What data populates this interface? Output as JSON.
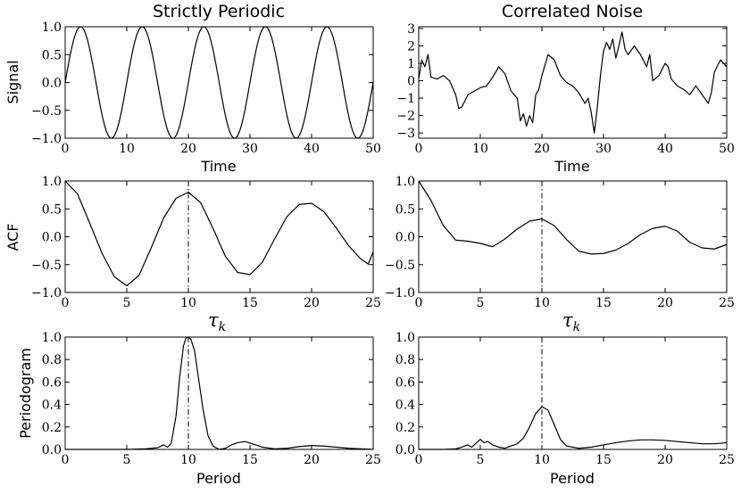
{
  "figure": {
    "background": "#ffffff",
    "line_color": "#000000"
  },
  "chart_data": [
    {
      "id": "signal-periodic",
      "type": "line",
      "title": "Strictly Periodic",
      "xlabel": "Time",
      "ylabel": "Signal",
      "xlim": [
        0,
        50
      ],
      "ylim": [
        -1.0,
        1.0
      ],
      "xticks": [
        0,
        10,
        20,
        30,
        40,
        50
      ],
      "xtick_labels": [
        "0",
        "10",
        "20",
        "30",
        "40",
        "50"
      ],
      "yticks": [
        1.0,
        0.5,
        0.0,
        -0.5,
        -1.0
      ],
      "ytick_labels": [
        "1.0",
        "0.5",
        "0.0",
        "−0.5",
        "−1.0"
      ],
      "series": [
        {
          "name": "signal",
          "kind": "sine",
          "period": 10,
          "amplitude": 1.0
        }
      ]
    },
    {
      "id": "signal-noise",
      "type": "line",
      "title": "Correlated Noise",
      "xlabel": "Time",
      "ylabel": "",
      "xlim": [
        0,
        50
      ],
      "ylim": [
        -3.3,
        3.1
      ],
      "xticks": [
        0,
        10,
        20,
        30,
        40,
        50
      ],
      "xtick_labels": [
        "0",
        "10",
        "20",
        "30",
        "40",
        "50"
      ],
      "yticks": [
        3,
        2,
        1,
        0,
        -1,
        -2,
        -3
      ],
      "ytick_labels": [
        "3",
        "2",
        "1",
        "0",
        "−1",
        "−2",
        "−3"
      ],
      "series": [
        {
          "name": "signal",
          "x": [
            0,
            0.5,
            1,
            1.5,
            2,
            3,
            4,
            5,
            6,
            6.5,
            7,
            8,
            9,
            10,
            11,
            12,
            13,
            14,
            15,
            16,
            16.5,
            17,
            17.5,
            18,
            18.5,
            19,
            19.5,
            20,
            21,
            22,
            23,
            24,
            25,
            26,
            27,
            27.5,
            28,
            28.5,
            29,
            29.5,
            30,
            30.5,
            31,
            31.5,
            32,
            32.5,
            33,
            33.5,
            34,
            35,
            36,
            37,
            37.5,
            38,
            39,
            40,
            40.5,
            41,
            42,
            43,
            44,
            45,
            46,
            47,
            47.5,
            48,
            49,
            50
          ],
          "values": [
            0.1,
            1.2,
            0.8,
            1.5,
            0.2,
            0.1,
            0.3,
            0.0,
            -0.8,
            -1.6,
            -1.5,
            -0.8,
            -0.6,
            -0.4,
            -0.3,
            0.2,
            0.8,
            0.4,
            -0.6,
            -1.0,
            -2.3,
            -1.9,
            -2.6,
            -2.0,
            -2.4,
            -0.8,
            -0.5,
            0.3,
            1.5,
            1.2,
            0.3,
            -0.1,
            -0.3,
            -0.7,
            -1.3,
            -1.0,
            -1.8,
            -3.0,
            -1.5,
            0.3,
            1.7,
            2.2,
            1.8,
            2.4,
            1.3,
            2.0,
            2.8,
            1.8,
            1.5,
            2.0,
            1.5,
            0.8,
            1.5,
            0.0,
            0.3,
            1.0,
            0.8,
            0.1,
            -0.3,
            -0.5,
            -0.8,
            -0.3,
            -0.8,
            -1.3,
            -0.7,
            0.5,
            1.2,
            0.8
          ]
        }
      ]
    },
    {
      "id": "acf-periodic",
      "type": "line",
      "title": "",
      "xlabel": "τ",
      "xlabel_sub": "k",
      "ylabel": "ACF",
      "xlim": [
        0,
        25
      ],
      "ylim": [
        -1.0,
        1.0
      ],
      "xticks": [
        0,
        5,
        10,
        15,
        20,
        25
      ],
      "xtick_labels": [
        "0",
        "5",
        "10",
        "15",
        "20",
        "25"
      ],
      "yticks": [
        1.0,
        0.5,
        0.0,
        -0.5,
        -1.0
      ],
      "ytick_labels": [
        "1.0",
        "0.5",
        "0.0",
        "−0.5",
        "−1.0"
      ],
      "marker_x": 10,
      "series": [
        {
          "name": "acf",
          "x": [
            0,
            1,
            2,
            3,
            4,
            5,
            6,
            7,
            8,
            9,
            10,
            11,
            12,
            13,
            14,
            15,
            16,
            17,
            18,
            19,
            20,
            21,
            22,
            23,
            24,
            24.6,
            25
          ],
          "values": [
            1.0,
            0.77,
            0.24,
            -0.3,
            -0.72,
            -0.88,
            -0.69,
            -0.19,
            0.34,
            0.69,
            0.8,
            0.61,
            0.15,
            -0.35,
            -0.64,
            -0.68,
            -0.46,
            -0.04,
            0.36,
            0.58,
            0.6,
            0.45,
            0.16,
            -0.16,
            -0.4,
            -0.49,
            -0.27
          ]
        }
      ]
    },
    {
      "id": "acf-noise",
      "type": "line",
      "title": "",
      "xlabel": "τ",
      "xlabel_sub": "k",
      "ylabel": "",
      "xlim": [
        0,
        25
      ],
      "ylim": [
        -1.0,
        1.0
      ],
      "xticks": [
        0,
        5,
        10,
        15,
        20,
        25
      ],
      "xtick_labels": [
        "0",
        "5",
        "10",
        "15",
        "20",
        "25"
      ],
      "yticks": [
        1.0,
        0.5,
        0.0,
        -0.5,
        -1.0
      ],
      "ytick_labels": [
        "1.0",
        "0.5",
        "0.0",
        "−0.5",
        "−1.0"
      ],
      "marker_x": 10,
      "series": [
        {
          "name": "acf",
          "x": [
            0,
            1,
            2,
            3,
            4,
            5,
            6,
            7,
            8,
            9,
            10,
            11,
            12,
            13,
            14,
            15,
            16,
            17,
            18,
            19,
            20,
            21,
            22,
            23,
            24,
            25
          ],
          "values": [
            1.0,
            0.65,
            0.2,
            -0.06,
            -0.08,
            -0.12,
            -0.18,
            -0.04,
            0.14,
            0.28,
            0.32,
            0.2,
            -0.05,
            -0.26,
            -0.31,
            -0.3,
            -0.24,
            -0.12,
            0.04,
            0.15,
            0.19,
            0.1,
            -0.1,
            -0.2,
            -0.22,
            -0.14
          ]
        }
      ]
    },
    {
      "id": "periodogram-periodic",
      "type": "line",
      "title": "",
      "xlabel": "Period",
      "ylabel": "Periodogram",
      "xlim": [
        0,
        25
      ],
      "ylim": [
        0.0,
        1.0
      ],
      "xticks": [
        0,
        5,
        10,
        15,
        20,
        25
      ],
      "xtick_labels": [
        "0",
        "5",
        "10",
        "15",
        "20",
        "25"
      ],
      "yticks": [
        1.0,
        0.8,
        0.6,
        0.4,
        0.2,
        0.0
      ],
      "ytick_labels": [
        "1.0",
        "0.8",
        "0.6",
        "0.4",
        "0.2",
        "0.0"
      ],
      "marker_x": 10,
      "series": [
        {
          "name": "periodogram",
          "x": [
            0,
            5,
            6.5,
            7.5,
            8.0,
            8.3,
            8.6,
            9.0,
            9.3,
            9.6,
            9.8,
            10.0,
            10.2,
            10.5,
            10.8,
            11.2,
            11.6,
            12.0,
            12.5,
            13.0,
            13.5,
            14.0,
            14.6,
            15.2,
            16.0,
            17.0,
            18.0,
            19.0,
            20.0,
            21.0,
            22.0,
            23.0,
            24.0,
            25.0
          ],
          "values": [
            0.0,
            0.0,
            0.005,
            0.015,
            0.04,
            0.02,
            0.05,
            0.3,
            0.65,
            0.92,
            0.99,
            1.0,
            0.98,
            0.88,
            0.65,
            0.35,
            0.12,
            0.03,
            0.0,
            0.01,
            0.04,
            0.06,
            0.07,
            0.05,
            0.02,
            0.005,
            0.01,
            0.025,
            0.035,
            0.03,
            0.02,
            0.01,
            0.005,
            0.0
          ]
        }
      ]
    },
    {
      "id": "periodogram-noise",
      "type": "line",
      "title": "",
      "xlabel": "Period",
      "ylabel": "",
      "xlim": [
        0,
        25
      ],
      "ylim": [
        0.0,
        1.0
      ],
      "xticks": [
        0,
        5,
        10,
        15,
        20,
        25
      ],
      "xtick_labels": [
        "0",
        "5",
        "10",
        "15",
        "20",
        "25"
      ],
      "yticks": [
        1.0,
        0.8,
        0.6,
        0.4,
        0.2,
        0.0
      ],
      "ytick_labels": [
        "1.0",
        "0.8",
        "0.6",
        "0.4",
        "0.2",
        "0.0"
      ],
      "marker_x": 10,
      "series": [
        {
          "name": "periodogram",
          "x": [
            0,
            2,
            3,
            3.5,
            4.0,
            4.3,
            4.6,
            5.0,
            5.3,
            5.6,
            6.0,
            6.5,
            7.0,
            7.5,
            8.0,
            8.5,
            9.0,
            9.5,
            10.0,
            10.5,
            11.0,
            11.5,
            12.0,
            13.0,
            14.0,
            15.0,
            16.0,
            17.0,
            18.0,
            19.0,
            20.0,
            21.0,
            22.0,
            23.0,
            24.0,
            25.0
          ],
          "values": [
            0.0,
            0.0,
            0.005,
            0.02,
            0.04,
            0.02,
            0.05,
            0.09,
            0.06,
            0.07,
            0.04,
            0.02,
            0.01,
            0.03,
            0.05,
            0.1,
            0.2,
            0.32,
            0.38,
            0.35,
            0.22,
            0.09,
            0.03,
            0.01,
            0.02,
            0.04,
            0.06,
            0.075,
            0.085,
            0.085,
            0.08,
            0.07,
            0.06,
            0.05,
            0.05,
            0.06
          ]
        }
      ]
    }
  ]
}
